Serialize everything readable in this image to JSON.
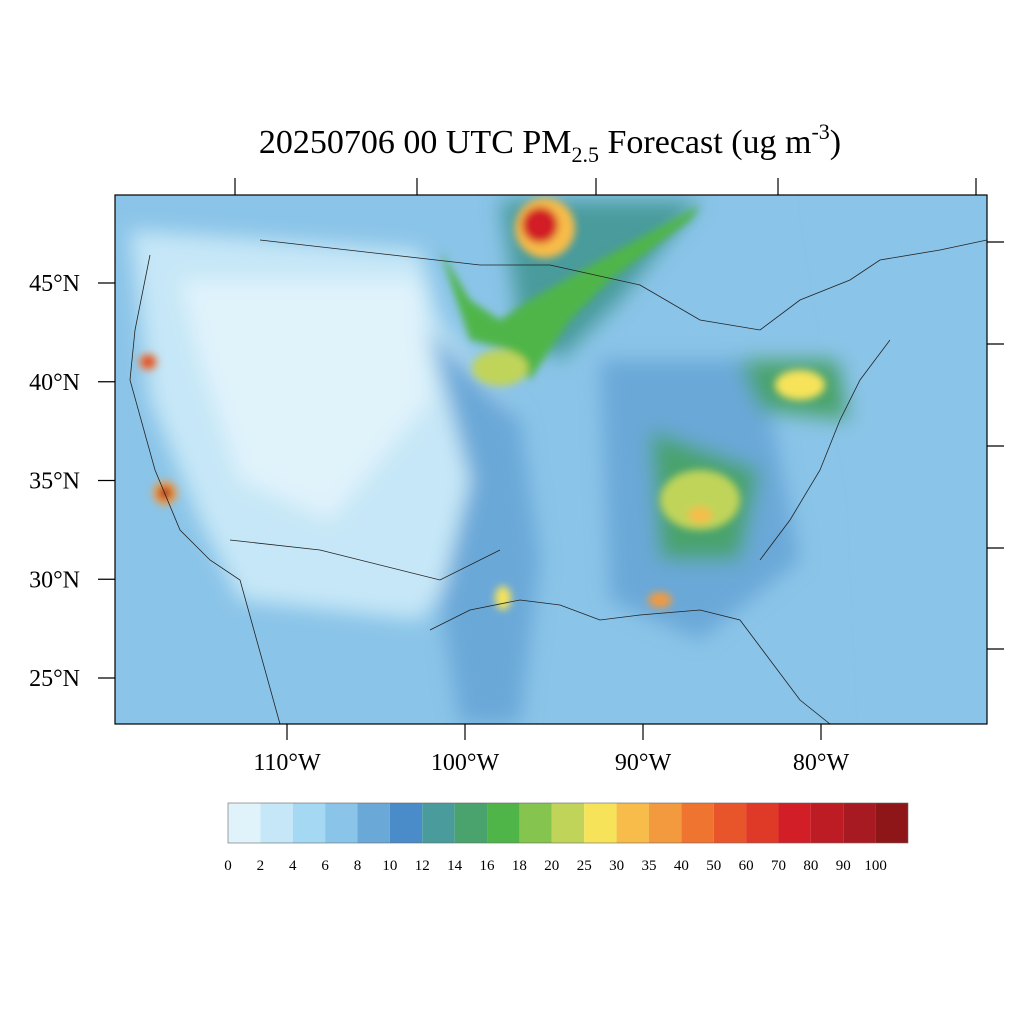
{
  "header": {
    "title": {
      "main": "20250706 00 UTC PM",
      "sub": "2.5",
      "mid": " Forecast (ug m",
      "sup": "-3",
      "end": ")"
    }
  },
  "map": {
    "lat_labels": [
      {
        "value": 45,
        "label": "45°N"
      },
      {
        "value": 40,
        "label": "40°N"
      },
      {
        "value": 35,
        "label": "35°N"
      },
      {
        "value": 30,
        "label": "30°N"
      },
      {
        "value": 25,
        "label": "25°N"
      }
    ],
    "lon_labels": [
      {
        "value": -110,
        "label": "110°W"
      },
      {
        "value": -100,
        "label": "100°W"
      },
      {
        "value": -90,
        "label": "90°W"
      },
      {
        "value": -80,
        "label": "80°W"
      }
    ]
  },
  "legend": {
    "levels": [
      0,
      2,
      4,
      6,
      8,
      10,
      12,
      14,
      16,
      18,
      20,
      25,
      30,
      35,
      40,
      50,
      60,
      70,
      80,
      90,
      100
    ],
    "colors": [
      "#e0f3fb",
      "#c6e7f7",
      "#a5d8f3",
      "#8ac4e8",
      "#6aa8d8",
      "#4a8cc9",
      "#4a9b9c",
      "#4aa36c",
      "#4fb548",
      "#84c44f",
      "#c0d45a",
      "#f6e35a",
      "#f7bc4a",
      "#f39a3e",
      "#ef7430",
      "#e8552b",
      "#df3a27",
      "#d21f27",
      "#bd1c24",
      "#a81a21",
      "#8e1619"
    ]
  }
}
